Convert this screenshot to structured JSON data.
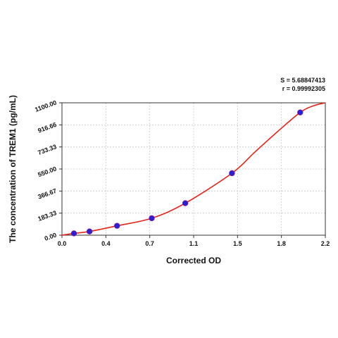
{
  "chart_data": {
    "type": "line",
    "title": "",
    "xlabel": "Corrected OD",
    "ylabel": "The concentration of TREM1 (pg/mL)",
    "xlim": [
      0.0,
      2.2
    ],
    "ylim": [
      0.0,
      1100.0
    ],
    "x_ticks": [
      "0.0",
      "0.4",
      "0.7",
      "1.1",
      "1.5",
      "1.8",
      "2.2"
    ],
    "y_ticks": [
      "0.00",
      "183.33",
      "366.67",
      "550.00",
      "733.33",
      "916.66",
      "1100.00"
    ],
    "grid": true,
    "annotations": [
      "S = 5.68847413",
      "r = 0.99992305"
    ],
    "series": [
      {
        "type": "scatter",
        "x": [
          0.1,
          0.23,
          0.46,
          0.75,
          1.03,
          1.42,
          1.99
        ],
        "y": [
          15,
          31,
          78,
          141,
          266,
          515,
          1020
        ]
      },
      {
        "type": "line",
        "x": [
          0.0,
          0.1,
          0.23,
          0.46,
          0.75,
          1.03,
          1.42,
          1.6,
          1.8,
          1.99,
          2.1,
          2.2
        ],
        "y": [
          0,
          15,
          31,
          78,
          141,
          266,
          515,
          680,
          860,
          1020,
          1075,
          1100
        ]
      }
    ],
    "colors": {
      "curve": "#e8231a",
      "points": "#2a1fd6",
      "point_edge": "#7a1a9a",
      "grid": "#c8c8c8"
    }
  }
}
